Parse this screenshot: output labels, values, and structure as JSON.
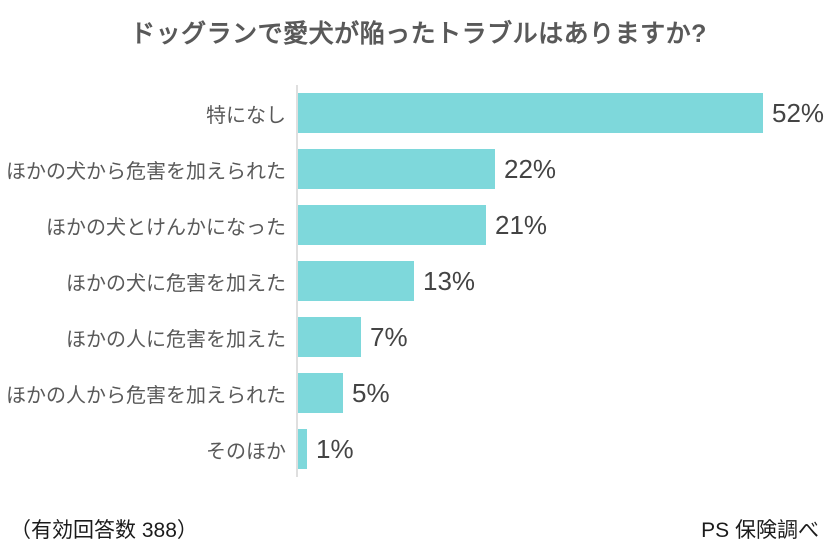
{
  "footer": {
    "left": "（有効回答数 388）",
    "right": "PS 保険調べ"
  },
  "colors": {
    "bar": "#7ED8DB",
    "axis": "#DFDFDF",
    "title_text": "#595959",
    "label_text": "#595959",
    "value_text": "#444444",
    "footer_text": "#1B1B1B"
  },
  "chart_data": {
    "type": "bar",
    "orientation": "horizontal",
    "title": "ドッグランで愛犬が陥ったトラブルはありますか?",
    "categories": [
      "特になし",
      "ほかの犬から危害を加えられた",
      "ほかの犬とけんかになった",
      "ほかの犬に危害を加えた",
      "ほかの人に危害を加えた",
      "ほかの人から危害を加えられた",
      "そのほか"
    ],
    "values": [
      52,
      22,
      21,
      13,
      7,
      5,
      1
    ],
    "value_labels": [
      "52%",
      "22%",
      "21%",
      "13%",
      "7%",
      "5%",
      "1%"
    ],
    "unit": "%",
    "xlim": [
      0,
      58
    ],
    "grid": false,
    "legend": false
  }
}
